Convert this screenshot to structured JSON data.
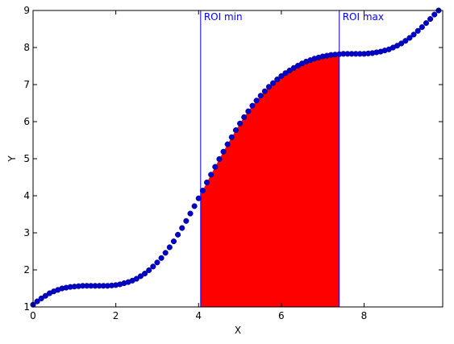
{
  "chart_data": {
    "type": "scatter",
    "title": "",
    "xlabel": "X",
    "ylabel": "Y",
    "xlim": [
      0,
      9.9
    ],
    "ylim": [
      1,
      9
    ],
    "xticks": [
      0,
      2,
      4,
      6,
      8
    ],
    "yticks": [
      1,
      2,
      3,
      4,
      5,
      6,
      7,
      8,
      9
    ],
    "grid": false,
    "colors": {
      "points": "#0000cc",
      "roi_fill": "#ff0000",
      "roi_line": "#0000ff"
    },
    "x": [
      0.0,
      0.1,
      0.2,
      0.3,
      0.4,
      0.5,
      0.6,
      0.7,
      0.8,
      0.9,
      1.0,
      1.1,
      1.2,
      1.3,
      1.4,
      1.5,
      1.6,
      1.7,
      1.8,
      1.9,
      2.0,
      2.1,
      2.2,
      2.3,
      2.4,
      2.5,
      2.6,
      2.7,
      2.8,
      2.9,
      3.0,
      3.1,
      3.2,
      3.3,
      3.4,
      3.5,
      3.6,
      3.7,
      3.8,
      3.9,
      4.0,
      4.1,
      4.2,
      4.3,
      4.4,
      4.5,
      4.6,
      4.7,
      4.8,
      4.9,
      5.0,
      5.1,
      5.2,
      5.3,
      5.4,
      5.5,
      5.6,
      5.7,
      5.8,
      5.9,
      6.0,
      6.1,
      6.2,
      6.3,
      6.4,
      6.5,
      6.6,
      6.7,
      6.8,
      6.9,
      7.0,
      7.1,
      7.2,
      7.3,
      7.4,
      7.5,
      7.6,
      7.7,
      7.8,
      7.9,
      8.0,
      8.1,
      8.2,
      8.3,
      8.4,
      8.5,
      8.6,
      8.7,
      8.8,
      8.9,
      9.0,
      9.1,
      9.2,
      9.3,
      9.4,
      9.5,
      9.6,
      9.7,
      9.8
    ],
    "y": [
      1.06,
      1.15,
      1.23,
      1.3,
      1.37,
      1.42,
      1.46,
      1.5,
      1.52,
      1.54,
      1.55,
      1.56,
      1.57,
      1.57,
      1.57,
      1.57,
      1.57,
      1.57,
      1.57,
      1.58,
      1.59,
      1.61,
      1.64,
      1.67,
      1.71,
      1.76,
      1.83,
      1.9,
      1.99,
      2.09,
      2.2,
      2.32,
      2.46,
      2.61,
      2.77,
      2.95,
      3.13,
      3.32,
      3.52,
      3.72,
      3.93,
      4.14,
      4.36,
      4.57,
      4.78,
      4.99,
      5.19,
      5.39,
      5.58,
      5.77,
      5.95,
      6.12,
      6.28,
      6.43,
      6.57,
      6.7,
      6.82,
      6.94,
      7.04,
      7.14,
      7.23,
      7.31,
      7.38,
      7.45,
      7.51,
      7.57,
      7.62,
      7.66,
      7.7,
      7.73,
      7.76,
      7.78,
      7.8,
      7.81,
      7.82,
      7.83,
      7.83,
      7.83,
      7.83,
      7.83,
      7.83,
      7.84,
      7.85,
      7.87,
      7.89,
      7.92,
      7.95,
      8.0,
      8.05,
      8.11,
      8.18,
      8.26,
      8.35,
      8.45,
      8.55,
      8.66,
      8.77,
      8.89,
      9.0
    ],
    "roi": {
      "min": 4.05,
      "max": 7.4,
      "min_label": "ROI min",
      "max_label": "ROI max"
    }
  }
}
